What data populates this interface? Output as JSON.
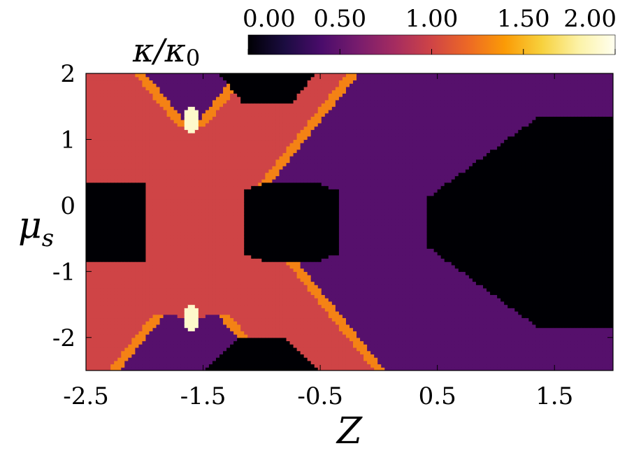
{
  "chart_data": {
    "type": "heatmap",
    "title": "",
    "xlabel": "Z",
    "ylabel": "μ",
    "ylabel_sub": "s",
    "xlim": [
      -2.5,
      2.0
    ],
    "ylim": [
      -2.5,
      2.0
    ],
    "xticks": [
      "-2.5",
      "-1.5",
      "-0.5",
      "0.5",
      "1.5"
    ],
    "xtick_values": [
      -2.5,
      -1.5,
      -0.5,
      0.5,
      1.5
    ],
    "yticks": [
      "2",
      "1",
      "0",
      "-1",
      "-2"
    ],
    "ytick_values": [
      2,
      1,
      0,
      -1,
      -2
    ],
    "colorbar": {
      "label_main": "κ/κ",
      "label_sub": "0",
      "ticks": [
        "0.00",
        "0.50",
        "1.00",
        "1.50",
        "2.00"
      ],
      "tick_values": [
        0.0,
        0.5,
        1.0,
        1.5,
        2.0
      ],
      "range": [
        0.0,
        2.0
      ],
      "colormap": "inferno",
      "placement": "top"
    },
    "grid": false,
    "regions": {
      "zero_color": "#000004",
      "plateau_value": 0.45,
      "cross_value": 1.0,
      "bright_band_value": 1.3,
      "peak_value": 1.9,
      "peak_points": [
        [
          -1.6,
          1.3
        ],
        [
          -1.6,
          -1.7
        ]
      ]
    }
  }
}
